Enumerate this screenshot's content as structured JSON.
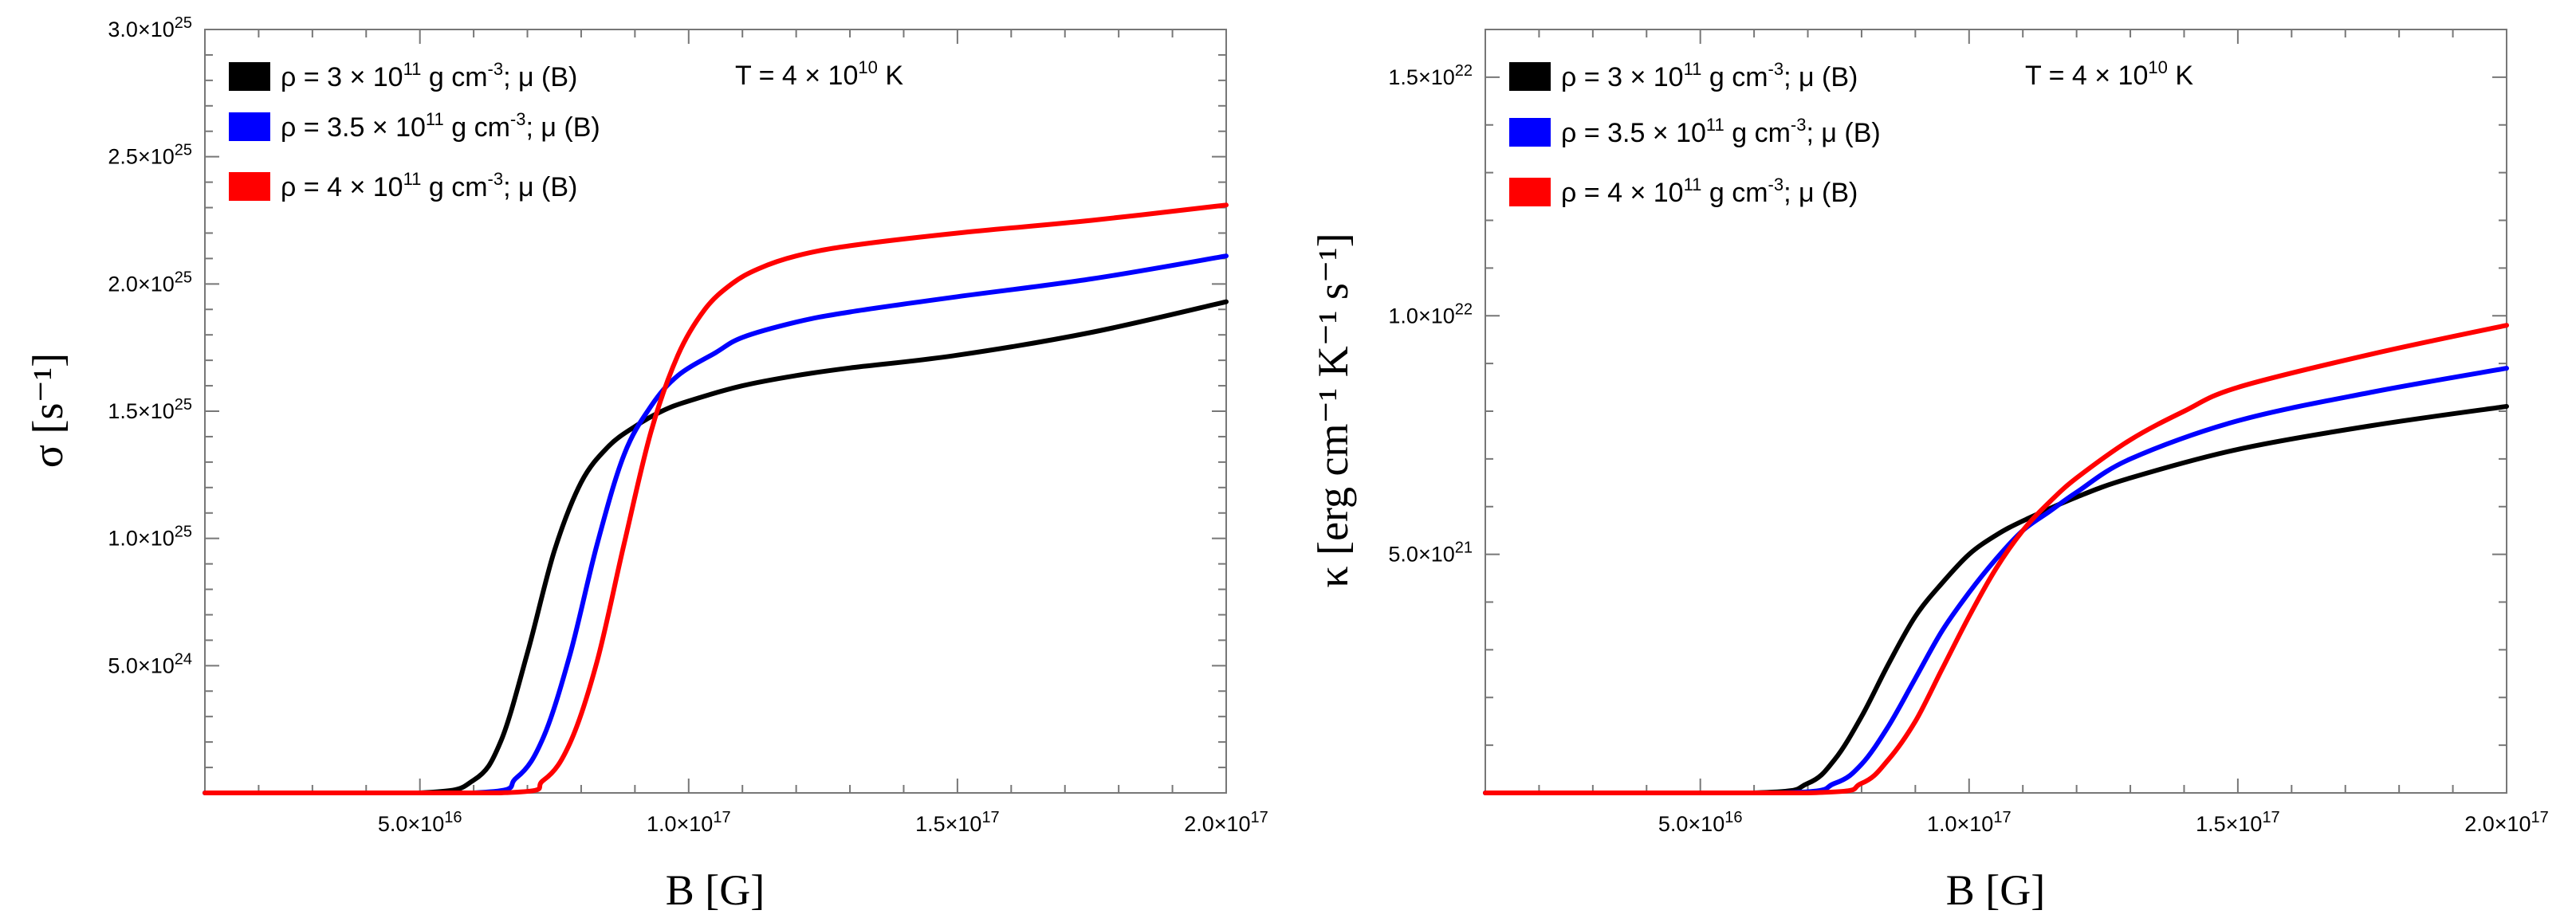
{
  "chart_data": [
    {
      "type": "line",
      "xlabel": "B [G]",
      "ylabel": "σ [s⁻¹]",
      "xlim": [
        1e+16,
        2e+17
      ],
      "ylim": [
        0,
        3e+25
      ],
      "xticks": [
        5e+16,
        1e+17,
        1.5e+17,
        2e+17
      ],
      "xtick_labels": [
        {
          "m": "5.0×10",
          "e": "16"
        },
        {
          "m": "1.0×10",
          "e": "17"
        },
        {
          "m": "1.5×10",
          "e": "17"
        },
        {
          "m": "2.0×10",
          "e": "17"
        }
      ],
      "yticks": [
        5e+24,
        1e+25,
        1.5e+25,
        2e+25,
        2.5e+25,
        3e+25
      ],
      "ytick_labels": [
        {
          "m": "5.0×10",
          "e": "24"
        },
        {
          "m": "1.0×10",
          "e": "25"
        },
        {
          "m": "1.5×10",
          "e": "25"
        },
        {
          "m": "2.0×10",
          "e": "25"
        },
        {
          "m": "2.5×10",
          "e": "25"
        },
        {
          "m": "3.0×10",
          "e": "25"
        }
      ],
      "annotation": {
        "pre": "T = 4 × 10",
        "sup": "10",
        "post": " K"
      },
      "legend_position": "top-left",
      "series": [
        {
          "name": "ρ = 3 × 10¹¹ g cm⁻³; μ (B)",
          "color": "#000000",
          "legend": {
            "pre": "ρ = 3 × 10",
            "sup1": "11",
            "mid": " g cm",
            "sup2": "-3",
            "post": "; μ (B)"
          },
          "x": [
            1e+16,
            5e+16,
            6e+16,
            6.5e+16,
            7e+16,
            7.5e+16,
            8e+16,
            8.5e+16,
            9e+16,
            9.5e+16,
            1e+17,
            1.1e+17,
            1.2e+17,
            1.3e+17,
            1.5e+17,
            1.75e+17,
            2e+17
          ],
          "values": [
            0,
            0,
            5e+23,
            2e+24,
            5.5e+24,
            9.5e+24,
            1.22e+25,
            1.36e+25,
            1.44e+25,
            1.5e+25,
            1.54e+25,
            1.6e+25,
            1.64e+25,
            1.67e+25,
            1.72e+25,
            1.81e+25,
            1.93e+25
          ]
        },
        {
          "name": "ρ = 3.5 × 10¹¹ g cm⁻³; μ (B)",
          "color": "#0000ff",
          "legend": {
            "pre": "ρ = 3.5 × 10",
            "sup1": "11",
            "mid": " g cm",
            "sup2": "-3",
            "post": "; μ (B)"
          },
          "x": [
            1e+16,
            6e+16,
            6.8e+16,
            7.3e+16,
            7.8e+16,
            8.3e+16,
            8.8e+16,
            9.3e+16,
            9.8e+16,
            1.05e+17,
            1.1e+17,
            1.2e+17,
            1.3e+17,
            1.5e+17,
            1.75e+17,
            2e+17
          ],
          "values": [
            0,
            0,
            6e+23,
            2.2e+24,
            5.5e+24,
            9.8e+24,
            1.33e+25,
            1.52e+25,
            1.64e+25,
            1.73e+25,
            1.79e+25,
            1.85e+25,
            1.89e+25,
            1.95e+25,
            2.02e+25,
            2.11e+25
          ]
        },
        {
          "name": "ρ = 4 × 10¹¹ g cm⁻³; μ (B)",
          "color": "#ff0000",
          "legend": {
            "pre": "ρ = 4 × 10",
            "sup1": "11",
            "mid": " g cm",
            "sup2": "-3",
            "post": "; μ (B)"
          },
          "x": [
            1e+16,
            6.5e+16,
            7.3e+16,
            7.8e+16,
            8.3e+16,
            8.8e+16,
            9.3e+16,
            9.8e+16,
            1.03e+17,
            1.08e+17,
            1.13e+17,
            1.2e+17,
            1.3e+17,
            1.5e+17,
            1.75e+17,
            2e+17
          ],
          "values": [
            0,
            0,
            5e+23,
            2e+24,
            5.2e+24,
            9.8e+24,
            1.42e+25,
            1.72e+25,
            1.9e+25,
            2e+25,
            2.06e+25,
            2.11e+25,
            2.15e+25,
            2.2e+25,
            2.25e+25,
            2.31e+25
          ]
        }
      ]
    },
    {
      "type": "line",
      "xlabel": "B [G]",
      "ylabel": "κ [erg cm⁻¹ K⁻¹ s⁻¹]",
      "xlim": [
        1e+16,
        2e+17
      ],
      "ylim": [
        0,
        1.6e+22
      ],
      "xticks": [
        5e+16,
        1e+17,
        1.5e+17,
        2e+17
      ],
      "xtick_labels": [
        {
          "m": "5.0×10",
          "e": "16"
        },
        {
          "m": "1.0×10",
          "e": "17"
        },
        {
          "m": "1.5×10",
          "e": "17"
        },
        {
          "m": "2.0×10",
          "e": "17"
        }
      ],
      "yticks": [
        5e+21,
        1e+22,
        1.5e+22
      ],
      "ytick_labels": [
        {
          "m": "5.0×10",
          "e": "21"
        },
        {
          "m": "1.0×10",
          "e": "22"
        },
        {
          "m": "1.5×10",
          "e": "22"
        }
      ],
      "annotation": {
        "pre": "T = 4 × 10",
        "sup": "10",
        "post": " K"
      },
      "legend_position": "top-left",
      "series": [
        {
          "name": "ρ = 3 × 10¹¹ g cm⁻³; μ (B)",
          "color": "#000000",
          "legend": {
            "pre": "ρ = 3 × 10",
            "sup1": "11",
            "mid": " g cm",
            "sup2": "-3",
            "post": "; μ (B)"
          },
          "x": [
            1e+16,
            6e+16,
            7e+16,
            7.5e+16,
            8e+16,
            8.5e+16,
            9e+16,
            9.5e+16,
            1e+17,
            1.05e+17,
            1.1e+17,
            1.2e+17,
            1.3e+17,
            1.5e+17,
            1.75e+17,
            2e+17
          ],
          "values": [
            0,
            0,
            2e+20,
            7e+20,
            1.6e+21,
            2.7e+21,
            3.7e+21,
            4.4e+21,
            5e+21,
            5.4e+21,
            5.7e+21,
            6.2e+21,
            6.6e+21,
            7.2e+21,
            7.7e+21,
            8.1e+21
          ]
        },
        {
          "name": "ρ = 3.5 × 10¹¹ g cm⁻³; μ (B)",
          "color": "#0000ff",
          "legend": {
            "pre": "ρ = 3.5 × 10",
            "sup1": "11",
            "mid": " g cm",
            "sup2": "-3",
            "post": "; μ (B)"
          },
          "x": [
            1e+16,
            6.5e+16,
            7.5e+16,
            8e+16,
            8.5e+16,
            9e+16,
            9.5e+16,
            1e+17,
            1.05e+17,
            1.1e+17,
            1.15e+17,
            1.2e+17,
            1.3e+17,
            1.5e+17,
            1.75e+17,
            2e+17
          ],
          "values": [
            0,
            0,
            2e+20,
            6e+20,
            1.4e+21,
            2.4e+21,
            3.4e+21,
            4.2e+21,
            4.9e+21,
            5.5e+21,
            5.9e+21,
            6.3e+21,
            7e+21,
            7.8e+21,
            8.4e+21,
            8.9e+21
          ]
        },
        {
          "name": "ρ = 4 × 10¹¹ g cm⁻³; μ (B)",
          "color": "#ff0000",
          "legend": {
            "pre": "ρ = 4 × 10",
            "sup1": "11",
            "mid": " g cm",
            "sup2": "-3",
            "post": "; μ (B)"
          },
          "x": [
            1e+16,
            7e+16,
            8e+16,
            8.5e+16,
            9e+16,
            9.5e+16,
            1e+17,
            1.05e+17,
            1.1e+17,
            1.15e+17,
            1.2e+17,
            1.3e+17,
            1.4e+17,
            1.5e+17,
            1.75e+17,
            2e+17
          ],
          "values": [
            0,
            0,
            2e+20,
            7e+20,
            1.5e+21,
            2.6e+21,
            3.7e+21,
            4.7e+21,
            5.5e+21,
            6.1e+21,
            6.6e+21,
            7.4e+21,
            8e+21,
            8.5e+21,
            9.2e+21,
            9.8e+21
          ]
        }
      ]
    }
  ]
}
